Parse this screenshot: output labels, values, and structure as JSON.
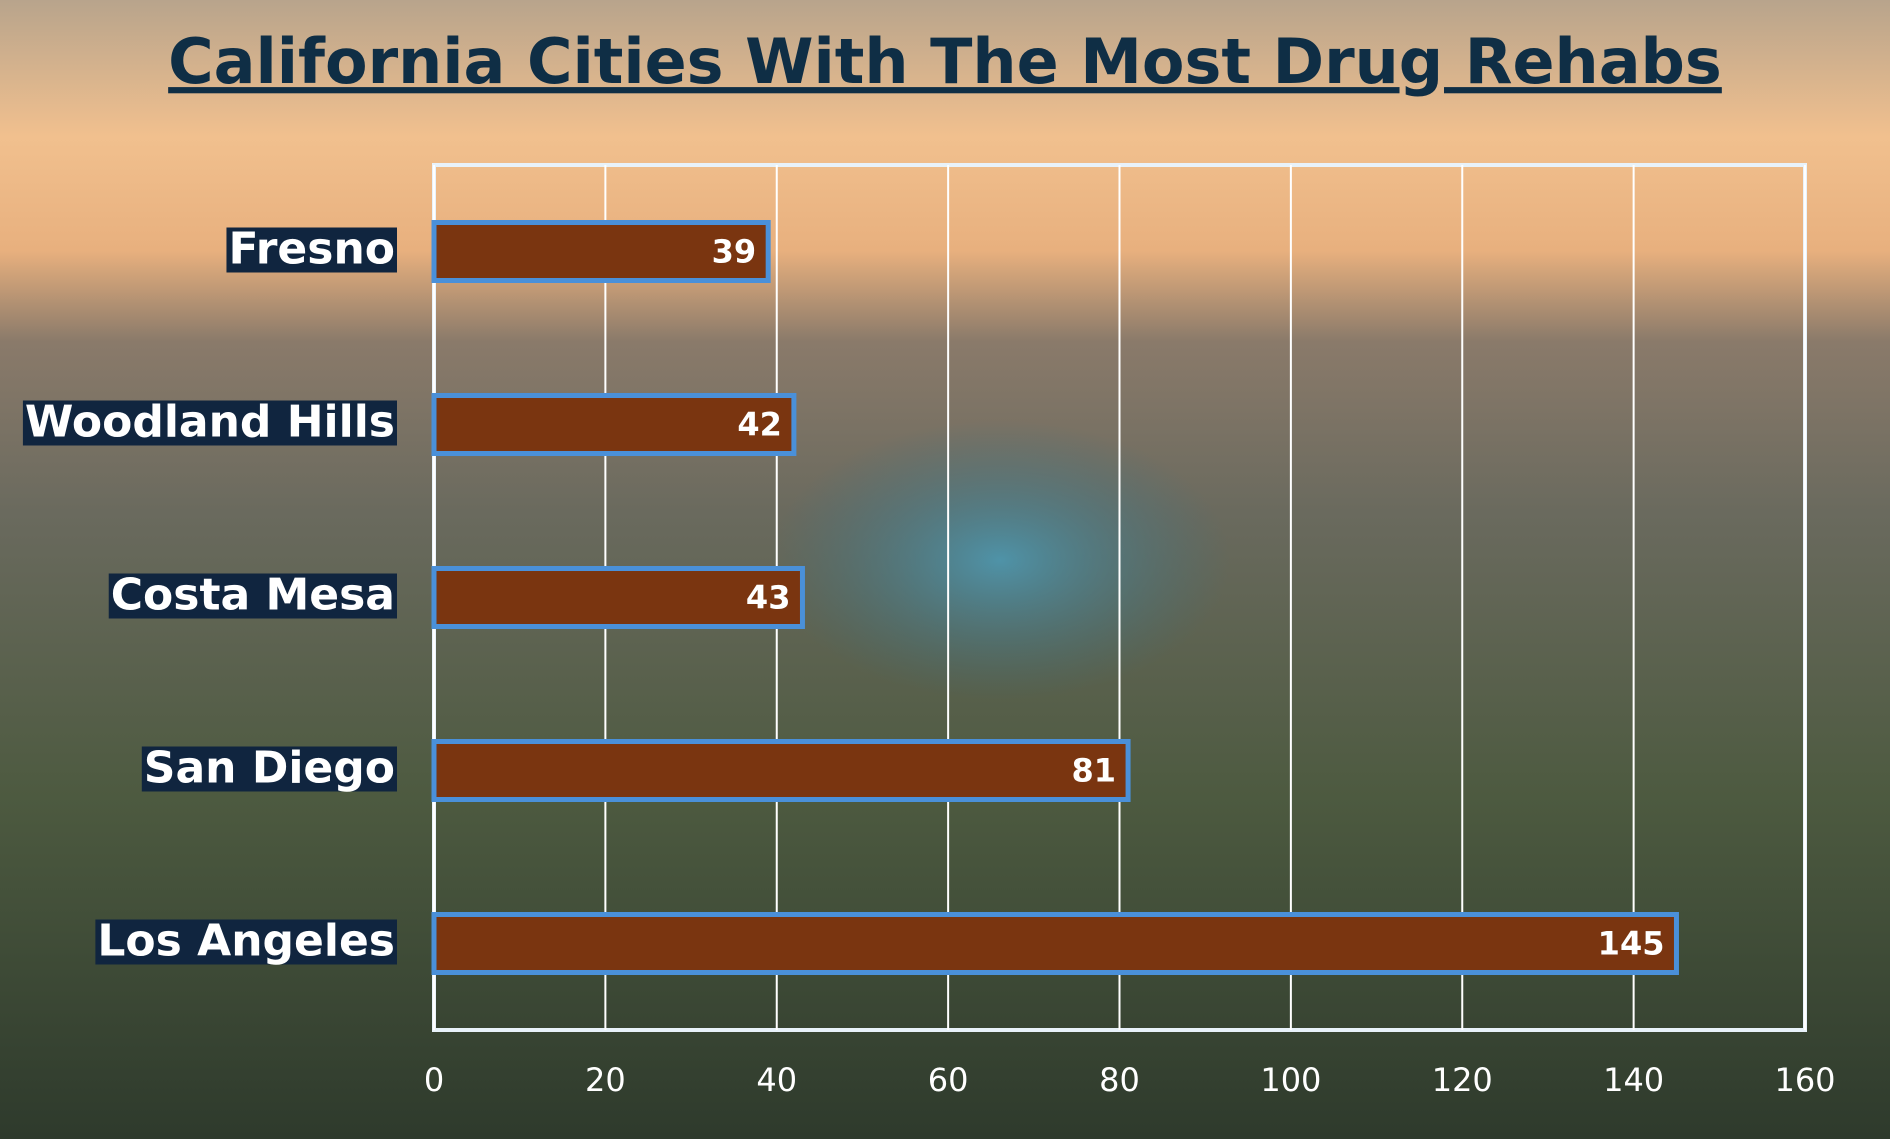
{
  "chart_data": {
    "type": "bar",
    "title": "California Cities With The Most Drug Rehabs",
    "categories": [
      "Fresno",
      "Woodland Hills",
      "Costa Mesa",
      "San Diego",
      "Los Angeles"
    ],
    "values": [
      39,
      42,
      43,
      81,
      145
    ],
    "color": "#7a3510",
    "edge_color": "#4a90d9",
    "xlim": [
      0,
      160
    ],
    "xticks": [
      0,
      20,
      40,
      60,
      80,
      100,
      120,
      140,
      160
    ],
    "grid": true
  }
}
